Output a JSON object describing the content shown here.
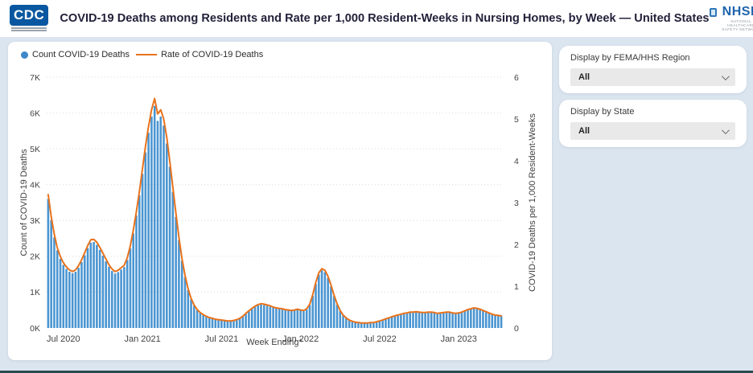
{
  "header": {
    "cdc_logo_text": "CDC",
    "title": "COVID-19 Deaths among Residents and Rate per 1,000 Resident-Weeks in Nursing Homes, by Week — United States",
    "nhsn_logo_text": "NHSN",
    "nhsn_logo_subtext": "NATIONAL HEALTHCARE SAFETY NETWORK"
  },
  "filters": [
    {
      "label": "Display by FEMA/HHS Region",
      "value": "All"
    },
    {
      "label": "Display by State",
      "value": "All"
    }
  ],
  "chart_data": {
    "type": "bar+line",
    "legend": [
      {
        "label": "Count COVID-19 Deaths",
        "marker": "dot",
        "color": "#3e88c9"
      },
      {
        "label": "Rate of COVID-19 Deaths",
        "marker": "line",
        "color": "#e8721c"
      }
    ],
    "xlabel": "Week Ending*",
    "x_tick_labels": [
      "Jul 2020",
      "Jan 2021",
      "Jul 2021",
      "Jan 2022",
      "Jul 2022",
      "Jan 2023"
    ],
    "x_tick_week_index": [
      5,
      31,
      57,
      83,
      109,
      135
    ],
    "grid": "dotted horizontal",
    "legend_position": "top-left",
    "left_axis": {
      "title": "Count of COVID-19 Deaths",
      "min": 0,
      "max": 7000,
      "tick_labels": [
        "0K",
        "1K",
        "2K",
        "3K",
        "4K",
        "5K",
        "6K",
        "7K"
      ]
    },
    "right_axis": {
      "title": "COVID-19 Deaths per 1,000 Resident-Weeks",
      "min": 0,
      "max": 6,
      "tick_labels": [
        "0",
        "1",
        "2",
        "3",
        "4",
        "5",
        "6"
      ]
    },
    "series": [
      {
        "name": "Count COVID-19 Deaths",
        "type": "bar",
        "axis": "left",
        "color": "#4a95d1",
        "values": [
          3600,
          3010,
          2530,
          2170,
          1930,
          1760,
          1650,
          1570,
          1530,
          1570,
          1680,
          1840,
          2030,
          2230,
          2380,
          2400,
          2320,
          2180,
          2020,
          1860,
          1710,
          1590,
          1520,
          1560,
          1630,
          1700,
          1900,
          2220,
          2640,
          3140,
          3700,
          4300,
          4900,
          5450,
          5900,
          6200,
          5780,
          5900,
          5650,
          5150,
          4500,
          3800,
          3100,
          2450,
          1880,
          1420,
          1060,
          800,
          620,
          500,
          420,
          360,
          315,
          285,
          260,
          240,
          225,
          210,
          200,
          192,
          190,
          200,
          225,
          265,
          320,
          390,
          460,
          530,
          590,
          630,
          650,
          640,
          620,
          595,
          570,
          548,
          530,
          515,
          500,
          488,
          475,
          485,
          505,
          490,
          470,
          520,
          640,
          900,
          1230,
          1490,
          1610,
          1560,
          1400,
          1160,
          890,
          650,
          470,
          350,
          270,
          215,
          180,
          155,
          142,
          135,
          132,
          135,
          142,
          152,
          168,
          190,
          215,
          245,
          275,
          305,
          330,
          350,
          370,
          390,
          410,
          425,
          435,
          440,
          430,
          415,
          420,
          435,
          430,
          415,
          400,
          405,
          420,
          435,
          425,
          405,
          400,
          410,
          430,
          460,
          495,
          525,
          545,
          535,
          510,
          475,
          440,
          405,
          375,
          355,
          340,
          330
        ]
      },
      {
        "name": "Rate of COVID-19 Deaths",
        "type": "line",
        "axis": "right",
        "color": "#e8721c",
        "values": [
          3.19,
          2.66,
          2.24,
          1.92,
          1.71,
          1.56,
          1.46,
          1.39,
          1.35,
          1.39,
          1.49,
          1.63,
          1.8,
          1.97,
          2.11,
          2.12,
          2.05,
          1.93,
          1.79,
          1.65,
          1.51,
          1.41,
          1.35,
          1.38,
          1.44,
          1.5,
          1.68,
          1.96,
          2.34,
          2.78,
          3.27,
          3.81,
          4.34,
          4.82,
          5.22,
          5.49,
          5.12,
          5.22,
          5.0,
          4.56,
          3.98,
          3.36,
          2.74,
          2.17,
          1.66,
          1.26,
          0.94,
          0.71,
          0.55,
          0.44,
          0.37,
          0.32,
          0.28,
          0.25,
          0.23,
          0.21,
          0.2,
          0.19,
          0.18,
          0.17,
          0.17,
          0.18,
          0.2,
          0.23,
          0.28,
          0.35,
          0.41,
          0.47,
          0.52,
          0.56,
          0.58,
          0.57,
          0.55,
          0.53,
          0.5,
          0.48,
          0.47,
          0.46,
          0.44,
          0.43,
          0.42,
          0.43,
          0.45,
          0.43,
          0.42,
          0.46,
          0.57,
          0.8,
          1.09,
          1.32,
          1.42,
          1.38,
          1.24,
          1.03,
          0.79,
          0.58,
          0.42,
          0.31,
          0.24,
          0.19,
          0.16,
          0.14,
          0.13,
          0.12,
          0.12,
          0.12,
          0.13,
          0.13,
          0.15,
          0.17,
          0.19,
          0.22,
          0.24,
          0.27,
          0.29,
          0.31,
          0.33,
          0.35,
          0.36,
          0.38,
          0.38,
          0.39,
          0.38,
          0.37,
          0.37,
          0.38,
          0.38,
          0.37,
          0.35,
          0.36,
          0.37,
          0.38,
          0.38,
          0.36,
          0.35,
          0.36,
          0.38,
          0.41,
          0.44,
          0.46,
          0.48,
          0.47,
          0.45,
          0.42,
          0.39,
          0.36,
          0.33,
          0.31,
          0.3,
          0.29
        ]
      }
    ]
  }
}
